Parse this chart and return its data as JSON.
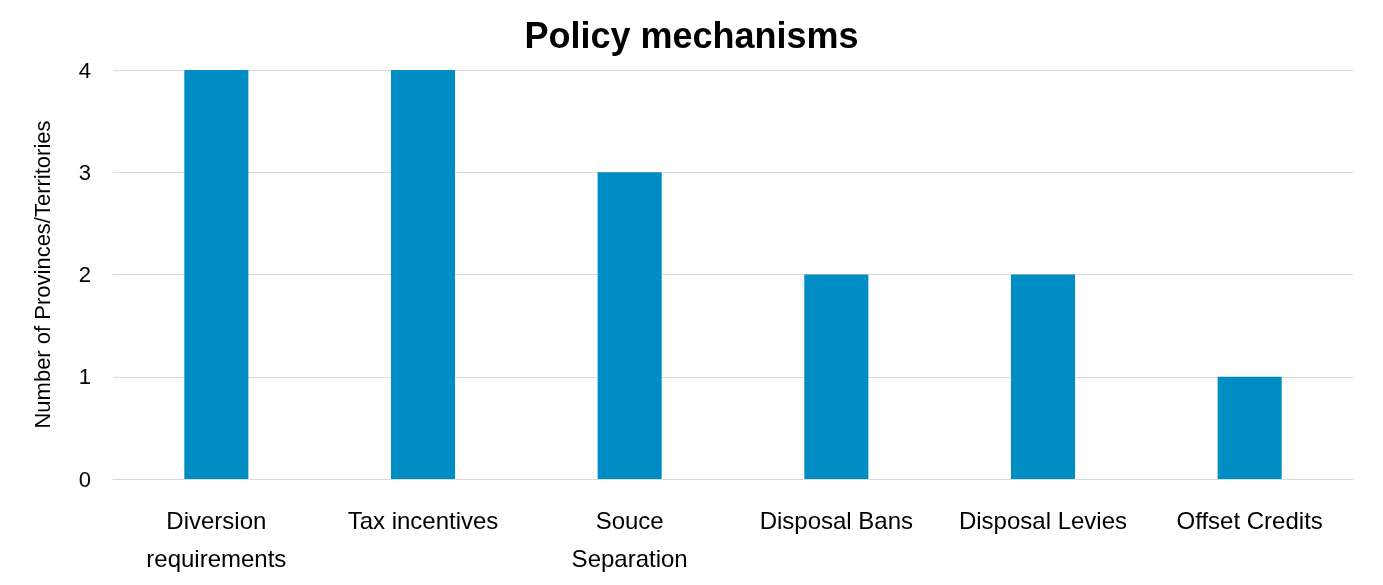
{
  "chart_data": {
    "type": "bar",
    "title": "Policy mechanisms",
    "ylabel": "Number of Provinces/Territories",
    "categories": [
      "Diversion\nrequirements",
      "Tax incentives",
      "Souce\nSeparation",
      "Disposal Bans",
      "Disposal Levies",
      "Offset Credits"
    ],
    "values": [
      4,
      4,
      3,
      2,
      2,
      1
    ],
    "color": "#008dc4",
    "ylim": [
      0,
      4
    ],
    "yticks": [
      0,
      1,
      2,
      3,
      4
    ],
    "grid": "y"
  }
}
